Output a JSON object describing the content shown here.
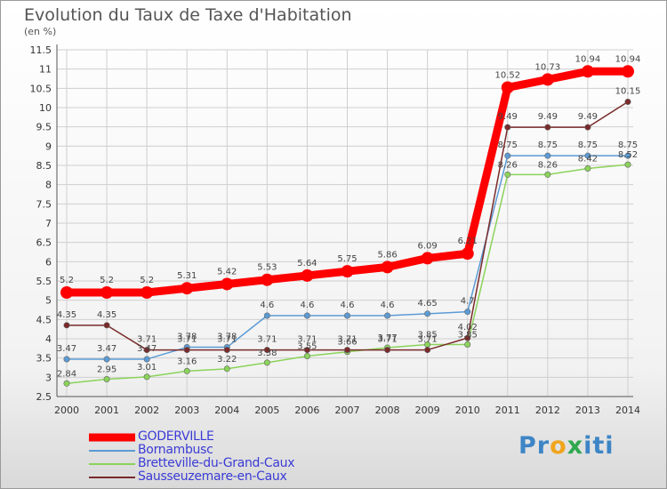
{
  "header": {
    "title": "Evolution du Taux de Taxe d'Habitation",
    "unit": "(en %)"
  },
  "chart_data": {
    "type": "line",
    "title": "Evolution du Taux de Taxe d'Habitation",
    "ylabel": "(en %)",
    "xlabel": "",
    "ylim": [
      2.5,
      11.5
    ],
    "yticks": [
      "2.5",
      "3",
      "3.5",
      "4",
      "4.5",
      "5",
      "5.5",
      "6",
      "6.5",
      "7",
      "7.5",
      "8",
      "8.5",
      "9",
      "9.5",
      "10",
      "10.5",
      "11",
      "11.5"
    ],
    "x": [
      "2000",
      "2001",
      "2002",
      "2003",
      "2004",
      "2005",
      "2006",
      "2007",
      "2008",
      "2009",
      "2010",
      "2011",
      "2012",
      "2013",
      "2014"
    ],
    "series": [
      {
        "name": "GODERVILLE",
        "color": "#ff0000",
        "values": [
          5.2,
          5.2,
          5.2,
          5.31,
          5.42,
          5.53,
          5.64,
          5.75,
          5.86,
          6.09,
          6.21,
          10.52,
          10.73,
          10.94,
          10.94
        ],
        "labels": [
          "5.2",
          "5.2",
          "5.2",
          "5.31",
          "5.42",
          "5.53",
          "5.64",
          "5.75",
          "5.86",
          "6.09",
          "6.21",
          "10.52",
          "10.73",
          "10.94",
          "10.94"
        ]
      },
      {
        "name": "Bornambusc",
        "color": "#5b9bd5",
        "values": [
          3.47,
          3.47,
          3.47,
          3.78,
          3.78,
          4.6,
          4.6,
          4.6,
          4.6,
          4.65,
          4.7,
          8.75,
          8.75,
          8.75,
          8.75
        ],
        "labels": [
          "3.47",
          "3.47",
          "3.47",
          "3.78",
          "3.78",
          "4.6",
          "4.6",
          "4.6",
          "4.6",
          "4.65",
          "4.7",
          "8.75",
          "8.75",
          "8.75",
          "8.75"
        ]
      },
      {
        "name": "Bretteville-du-Grand-Caux",
        "color": "#8bd35a",
        "values": [
          2.84,
          2.95,
          3.01,
          3.16,
          3.22,
          3.38,
          3.55,
          3.66,
          3.77,
          3.85,
          3.85,
          8.26,
          8.26,
          8.42,
          8.52
        ],
        "labels": [
          "2.84",
          "2.95",
          "3.01",
          "3.16",
          "3.22",
          "3.38",
          "3.55",
          "3.66",
          "3.77",
          "3.85",
          "3.85",
          "8.26",
          "8.26",
          "8.42",
          "8.52"
        ]
      },
      {
        "name": "Sausseuzemare-en-Caux",
        "color": "#7a2a2a",
        "values": [
          4.35,
          4.35,
          3.71,
          3.71,
          3.71,
          3.71,
          3.71,
          3.71,
          3.71,
          3.71,
          4.02,
          9.49,
          9.49,
          9.49,
          10.15
        ],
        "labels": [
          "4.35",
          "4.35",
          "3.71",
          "3.71",
          "3.71",
          "3.71",
          "3.71",
          "3.71",
          "3.71",
          "3.71",
          "4.02",
          "9.49",
          "9.49",
          "9.49",
          "10.15"
        ]
      }
    ],
    "legend_position": "bottom-left"
  },
  "legend": {
    "items": [
      "GODERVILLE",
      "Bornambusc",
      "Bretteville-du-Grand-Caux",
      "Sausseuzemare-en-Caux"
    ]
  },
  "brand": {
    "logo_letters": [
      "P",
      "r",
      "o",
      "x",
      "i",
      "t",
      "i"
    ],
    "logo_colors": [
      "#3d85c6",
      "#3d85c6",
      "#f1a51c",
      "#2fa84f",
      "#3d85c6",
      "#3d85c6",
      "#3d85c6"
    ]
  }
}
